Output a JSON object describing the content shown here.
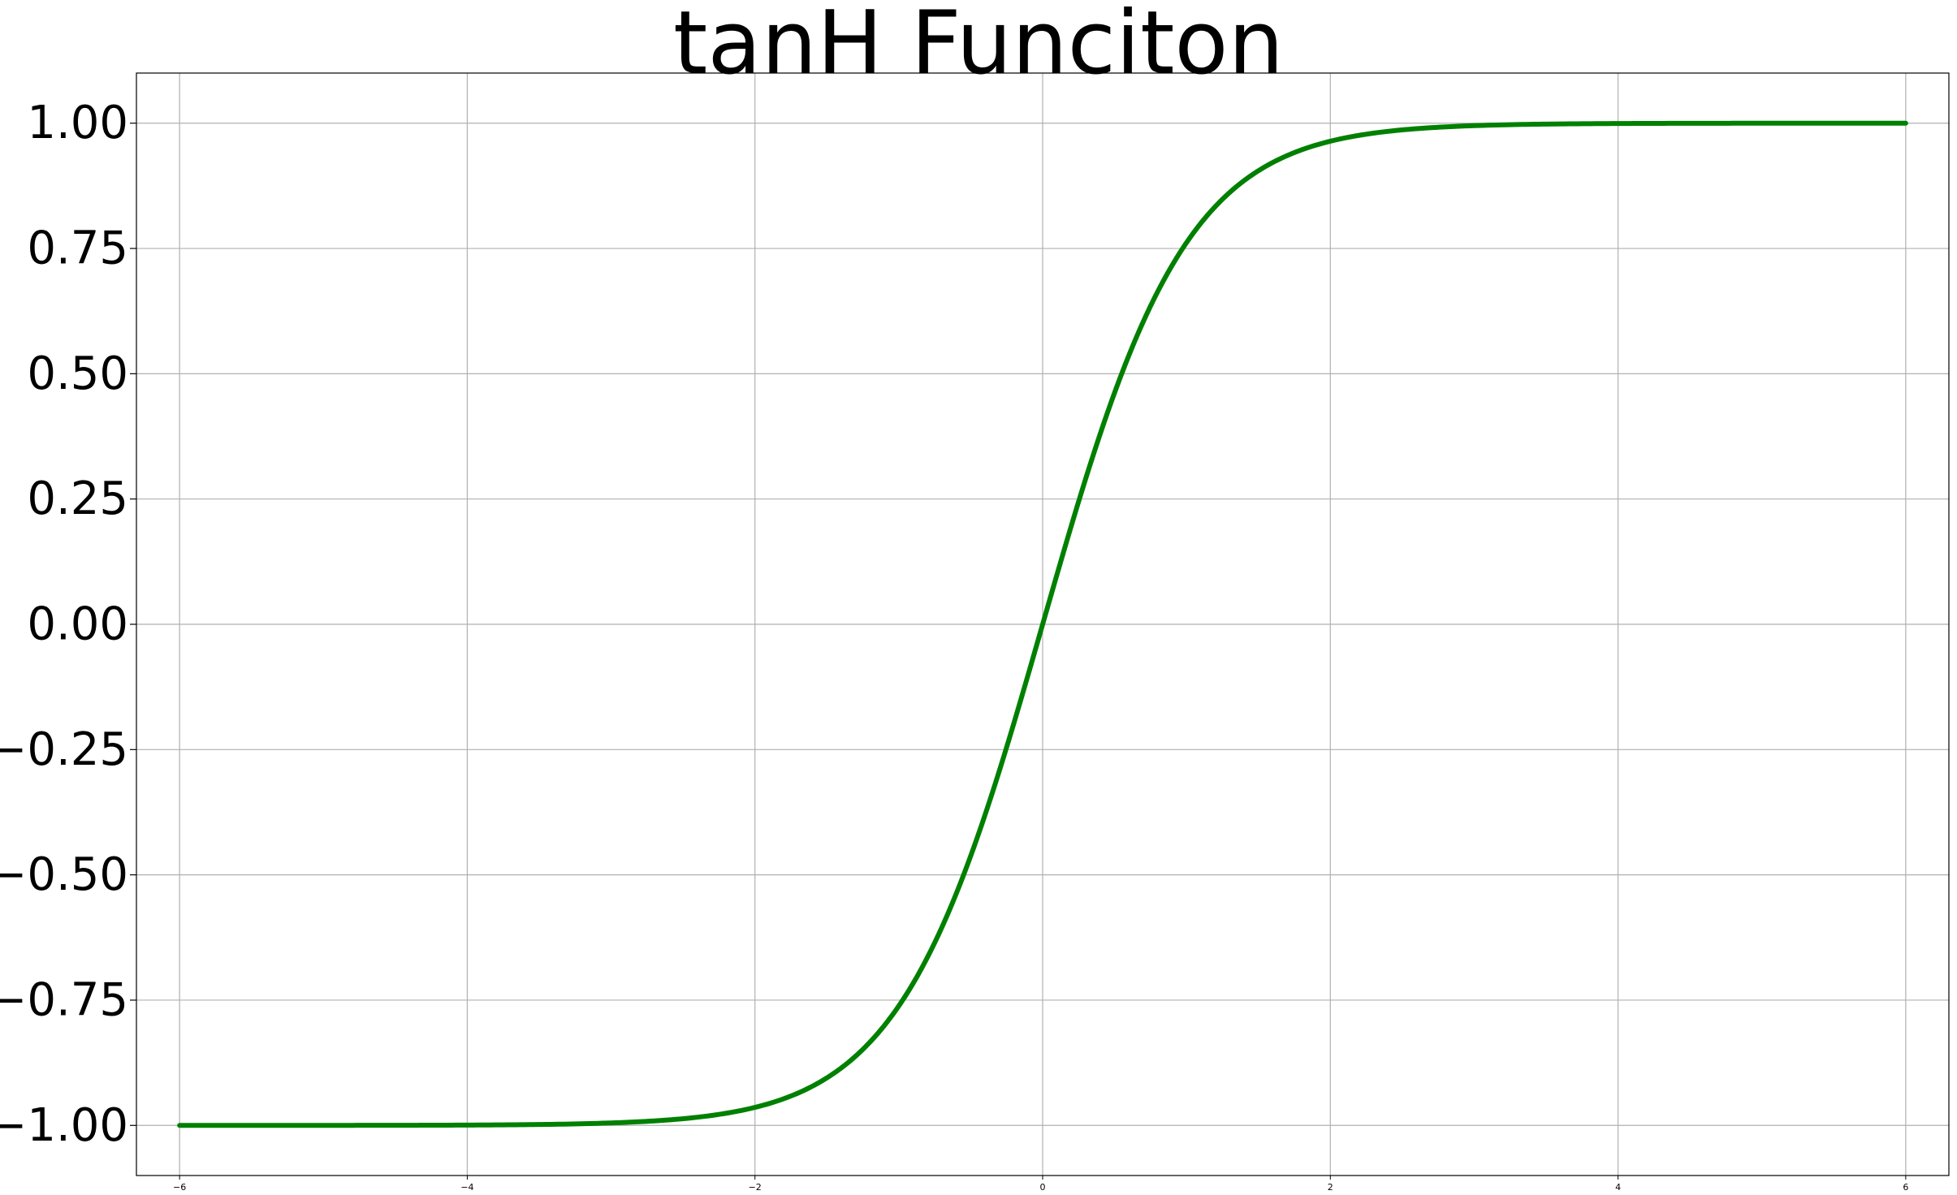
{
  "chart_data": {
    "type": "line",
    "title": "tanH Funciton",
    "xlabel": "",
    "ylabel": "",
    "xlim": [
      -6.3,
      6.3
    ],
    "ylim": [
      -1.1,
      1.1
    ],
    "grid": true,
    "xticks": [
      -6,
      -4,
      -2,
      0,
      2,
      4,
      6
    ],
    "xtick_labels": [
      "−6",
      "−4",
      "−2",
      "0",
      "2",
      "4",
      "6"
    ],
    "yticks": [
      1.0,
      0.75,
      0.5,
      0.25,
      0.0,
      -0.25,
      -0.5,
      -0.75,
      -1.0
    ],
    "ytick_labels": [
      "1.00",
      "0.75",
      "0.50",
      "0.25",
      "0.00",
      "−0.25",
      "−0.50",
      "−0.75",
      "−1.00"
    ],
    "series": [
      {
        "color": "#008000",
        "x": [
          -6,
          -5,
          -4,
          -3,
          -2.5,
          -2,
          -1.75,
          -1.5,
          -1.25,
          -1,
          -0.75,
          -0.5,
          -0.25,
          0,
          0.25,
          0.5,
          0.75,
          1,
          1.25,
          1.5,
          1.75,
          2,
          2.5,
          3,
          4,
          5,
          6
        ],
        "y": [
          -1.0,
          -0.9999,
          -0.9993,
          -0.9951,
          -0.9866,
          -0.964,
          -0.9414,
          -0.9051,
          -0.8483,
          -0.7616,
          -0.6351,
          -0.4621,
          -0.2449,
          0.0,
          0.2449,
          0.4621,
          0.6351,
          0.7616,
          0.8483,
          0.9051,
          0.9414,
          0.964,
          0.9866,
          0.9951,
          0.9993,
          0.9999,
          1.0
        ]
      }
    ]
  }
}
